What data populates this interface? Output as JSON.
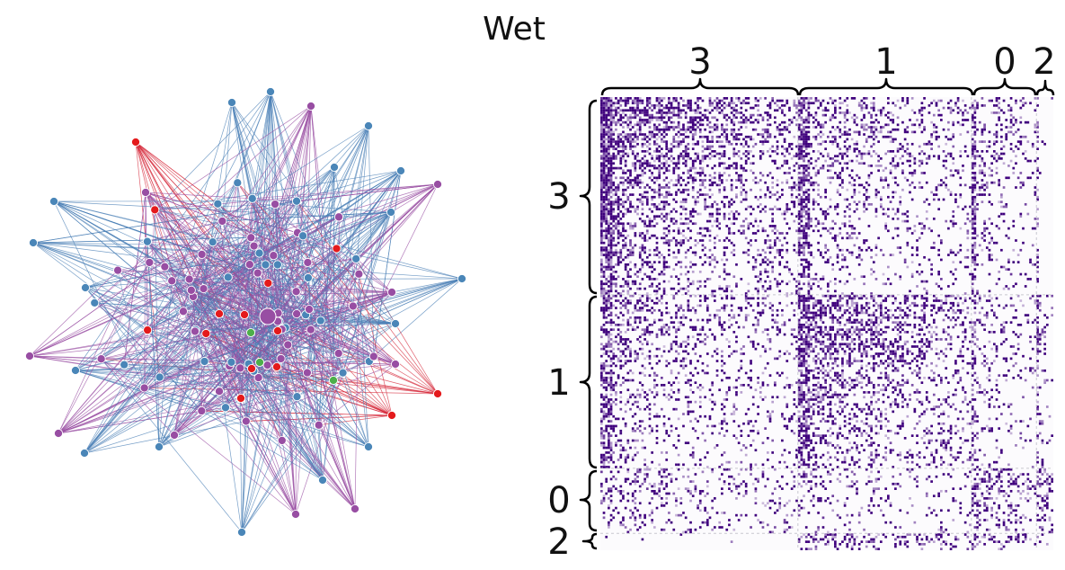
{
  "figure": {
    "title": "Wet"
  },
  "network": {
    "node_colors": {
      "blue": "#4a86b8",
      "purple": "#984ea3",
      "red": "#e41a1c",
      "green": "#4daf4a"
    },
    "edge_colors": [
      "#4a7fb5",
      "#9a4fa3",
      "#d62839"
    ]
  },
  "matrix": {
    "cmap_dark": "#3f007d",
    "cmap_light": "#fcfbfd",
    "blocks": [
      {
        "label": "3",
        "size": 82
      },
      {
        "label": "1",
        "size": 72
      },
      {
        "label": "0",
        "size": 27
      },
      {
        "label": "2",
        "size": 7
      }
    ],
    "block_density_levels": [
      [
        0.5,
        0.28,
        0.22,
        0.02
      ],
      [
        0.28,
        0.45,
        0.18,
        0.2
      ],
      [
        0.22,
        0.18,
        0.4,
        0.45
      ],
      [
        0.02,
        0.38,
        0.3,
        0.05
      ]
    ]
  }
}
